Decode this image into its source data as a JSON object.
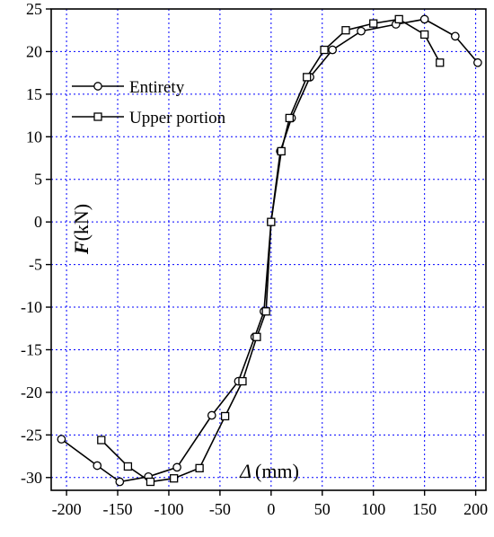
{
  "chart_data": {
    "type": "line",
    "title": "",
    "xlabel": {
      "symbol": "Δ",
      "unit": "(mm)"
    },
    "ylabel": {
      "symbol": "F",
      "unit": "(kN)"
    },
    "xlim": [
      -215,
      210
    ],
    "ylim": [
      -31.5,
      25
    ],
    "xticks": [
      -200,
      -150,
      -100,
      -50,
      0,
      50,
      100,
      150,
      200
    ],
    "xtick_labels": [
      "-200",
      "-150",
      "-100",
      "-50",
      "0",
      "50",
      "100",
      "150",
      "200"
    ],
    "yticks": [
      -30,
      -25,
      -20,
      -15,
      -10,
      -5,
      0,
      5,
      10,
      15,
      20,
      25
    ],
    "ytick_labels": [
      "-30",
      "-25",
      "-20",
      "-15",
      "-10",
      "-5",
      "0",
      "5",
      "10",
      "15",
      "20",
      "25"
    ],
    "grid": true,
    "grid_color": "#0000ff",
    "legend_position": "upper-left",
    "series": [
      {
        "name": "Entirety",
        "marker": "circle",
        "x": [
          -205,
          -170,
          -148,
          -120,
          -92,
          -58,
          -32,
          -16,
          -7,
          0,
          9,
          20,
          38,
          60,
          88,
          122,
          150,
          180,
          202
        ],
        "y": [
          -25.5,
          -28.6,
          -30.5,
          -29.9,
          -28.8,
          -22.7,
          -18.7,
          -13.5,
          -10.5,
          0,
          8.3,
          12.2,
          17.0,
          20.2,
          22.4,
          23.2,
          23.8,
          21.8,
          18.7
        ]
      },
      {
        "name": "Upper portion",
        "marker": "square",
        "x": [
          -166,
          -140,
          -118,
          -95,
          -70,
          -45,
          -28,
          -14,
          -5,
          0,
          10,
          18,
          35,
          52,
          73,
          100,
          125,
          150,
          165
        ],
        "y": [
          -25.6,
          -28.7,
          -30.5,
          -30.1,
          -28.9,
          -22.8,
          -18.7,
          -13.5,
          -10.5,
          0,
          8.3,
          12.2,
          17.0,
          20.2,
          22.5,
          23.3,
          23.8,
          22.0,
          18.7
        ]
      }
    ]
  }
}
